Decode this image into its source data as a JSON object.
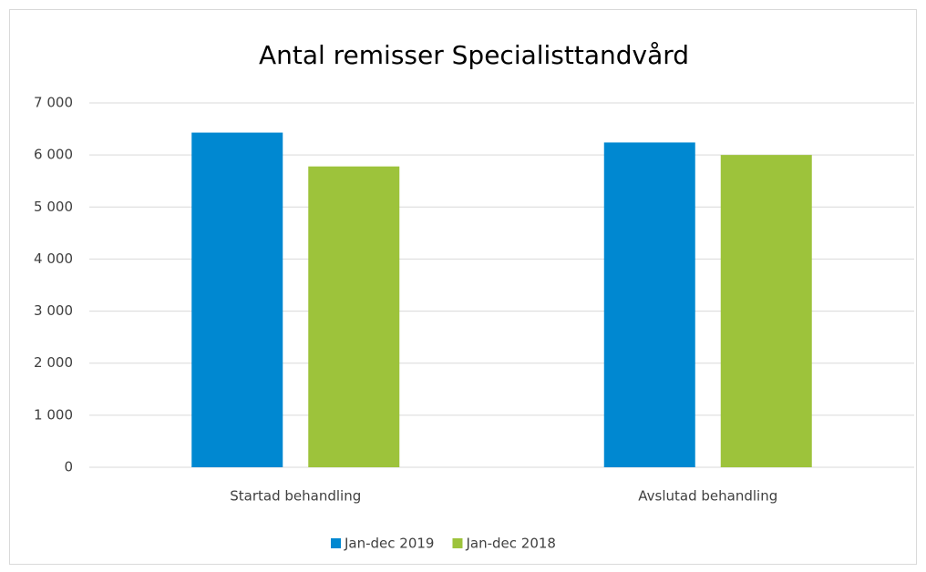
{
  "chart_data": {
    "type": "bar",
    "title": "Antal remisser Specialisttandvård",
    "categories": [
      "Startad behandling",
      "Avslutad behandling"
    ],
    "series": [
      {
        "name": "Jan-dec 2019",
        "color": "#0088d1",
        "values": [
          6430,
          6240
        ]
      },
      {
        "name": "Jan-dec 2018",
        "color": "#9dc33b",
        "values": [
          5780,
          6000
        ]
      }
    ],
    "ylim": [
      0,
      7000
    ],
    "yticks": [
      0,
      {
        "value": 1000,
        "label": "1 000"
      },
      {
        "value": 2000,
        "label": "2 000"
      },
      {
        "value": 3000,
        "label": "3 000"
      },
      {
        "value": 4000,
        "label": "4 000"
      },
      {
        "value": 5000,
        "label": "5 000"
      },
      {
        "value": 6000,
        "label": "6 000"
      },
      {
        "value": 7000,
        "label": "7 000"
      }
    ],
    "grid": true,
    "legend": "bottom"
  }
}
